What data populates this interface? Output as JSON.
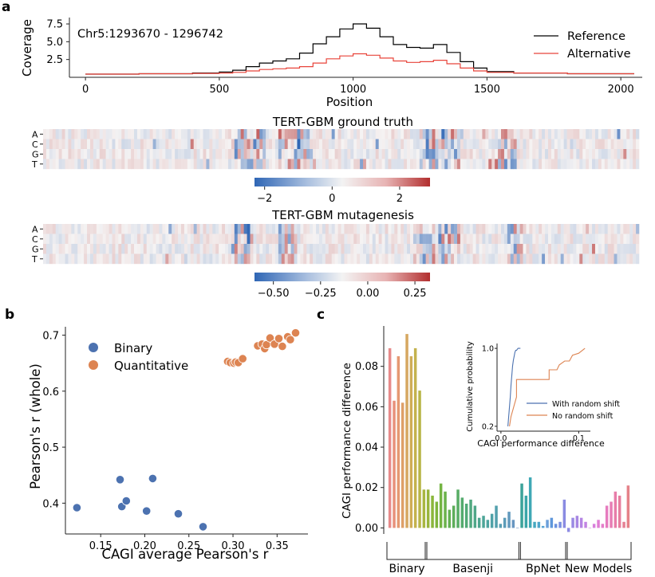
{
  "panel_letters": {
    "a": "a",
    "b": "b",
    "c": "c"
  },
  "chart_data": [
    {
      "id": "coverage",
      "type": "line",
      "annotation": "Chr5:1293670 - 1296742",
      "xlabel": "Position",
      "ylabel": "Coverage",
      "xlim": [
        -60,
        2080
      ],
      "ylim": [
        0,
        8.4
      ],
      "xticks": [
        0,
        500,
        1000,
        1500,
        2000
      ],
      "yticks": [
        2.5,
        5.0,
        7.5
      ],
      "ytick_labels": [
        "2.5",
        "5.0",
        "7.5"
      ],
      "legend_position": "top-right",
      "series": [
        {
          "name": "Reference",
          "color": "#000000",
          "x": [
            0,
            200,
            400,
            500,
            550,
            600,
            650,
            700,
            750,
            800,
            850,
            900,
            950,
            1000,
            1050,
            1100,
            1150,
            1200,
            1250,
            1300,
            1350,
            1400,
            1450,
            1500,
            1600,
            1800,
            2050
          ],
          "y": [
            0.45,
            0.5,
            0.6,
            0.75,
            1.0,
            1.5,
            2.0,
            2.3,
            2.6,
            3.4,
            4.7,
            5.7,
            6.8,
            7.5,
            6.9,
            5.7,
            4.6,
            4.2,
            4.1,
            4.6,
            3.5,
            2.2,
            1.3,
            0.8,
            0.6,
            0.5,
            0.5
          ]
        },
        {
          "name": "Alternative",
          "color": "#e8443a",
          "x": [
            0,
            200,
            400,
            500,
            550,
            600,
            650,
            700,
            750,
            800,
            850,
            900,
            950,
            1000,
            1050,
            1100,
            1150,
            1200,
            1250,
            1300,
            1350,
            1400,
            1450,
            1500,
            1600,
            1800,
            2050
          ],
          "y": [
            0.45,
            0.5,
            0.55,
            0.6,
            0.7,
            0.9,
            1.1,
            1.2,
            1.3,
            1.5,
            2.0,
            2.6,
            3.0,
            3.3,
            3.1,
            2.7,
            2.3,
            2.1,
            2.2,
            2.4,
            1.9,
            1.3,
            0.9,
            0.7,
            0.6,
            0.5,
            0.5
          ]
        }
      ]
    },
    {
      "id": "ground_truth",
      "type": "heatmap",
      "title": "TERT-GBM ground truth",
      "row_labels": [
        "A",
        "C",
        "G",
        "T"
      ],
      "colorbar_ticks": [
        "−2",
        "0",
        "2"
      ],
      "colorbar_range": [
        -2.3,
        2.9
      ]
    },
    {
      "id": "mutagenesis",
      "type": "heatmap",
      "title": "TERT-GBM mutagenesis",
      "row_labels": [
        "A",
        "C",
        "G",
        "T"
      ],
      "colorbar_ticks": [
        "−0.50",
        "−0.25",
        "0.00",
        "0.25"
      ],
      "colorbar_range": [
        -0.6,
        0.33
      ]
    },
    {
      "id": "scatter",
      "type": "scatter",
      "xlabel": "CAGI average Pearson's r",
      "ylabel": "Pearson's r (whole)",
      "xlim": [
        0.11,
        0.385
      ],
      "ylim": [
        0.345,
        0.715
      ],
      "xticks": [
        0.15,
        0.2,
        0.25,
        0.3,
        0.35
      ],
      "xtick_labels": [
        "0.15",
        "0.20",
        "0.25",
        "0.30",
        "0.35"
      ],
      "yticks": [
        0.4,
        0.5,
        0.6,
        0.7
      ],
      "ytick_labels": [
        "0.4",
        "0.5",
        "0.6",
        "0.7"
      ],
      "legend_position": "top-left",
      "series": [
        {
          "name": "Binary",
          "color": "#4c72b0",
          "x": [
            0.123,
            0.172,
            0.174,
            0.179,
            0.202,
            0.209,
            0.238,
            0.266
          ],
          "y": [
            0.392,
            0.442,
            0.394,
            0.404,
            0.386,
            0.444,
            0.381,
            0.358
          ]
        },
        {
          "name": "Quantitative",
          "color": "#dd8452",
          "x": [
            0.294,
            0.297,
            0.301,
            0.303,
            0.306,
            0.311,
            0.328,
            0.333,
            0.336,
            0.338,
            0.342,
            0.347,
            0.352,
            0.356,
            0.362,
            0.365,
            0.371
          ],
          "y": [
            0.653,
            0.651,
            0.65,
            0.652,
            0.651,
            0.658,
            0.681,
            0.684,
            0.676,
            0.683,
            0.695,
            0.684,
            0.694,
            0.68,
            0.697,
            0.692,
            0.704
          ]
        }
      ]
    },
    {
      "id": "bars",
      "type": "bar",
      "ylabel": "CAGI performance difference",
      "ylim": [
        -0.003,
        0.1
      ],
      "yticks": [
        0.0,
        0.02,
        0.04,
        0.06,
        0.08
      ],
      "ytick_labels": [
        "0.00",
        "0.02",
        "0.04",
        "0.06",
        "0.08"
      ],
      "groups": [
        {
          "name": "Binary",
          "start": 0,
          "end": 8
        },
        {
          "name": "Basenji",
          "start": 9,
          "end": 30
        },
        {
          "name": "BpNet",
          "start": 31,
          "end": 41
        },
        {
          "name": "New Models",
          "start": 42,
          "end": 56
        }
      ],
      "values": [
        0.089,
        0.063,
        0.085,
        0.062,
        0.096,
        0.085,
        0.089,
        0.068,
        0.019,
        0.019,
        0.016,
        0.013,
        0.022,
        0.018,
        0.009,
        0.011,
        0.019,
        0.015,
        0.012,
        0.014,
        0.011,
        0.005,
        0.006,
        0.004,
        0.007,
        0.011,
        0.002,
        0.005,
        0.008,
        0.004,
        0.0,
        0.022,
        0.016,
        0.025,
        0.003,
        0.003,
        0.001,
        0.004,
        0.005,
        0.002,
        0.003,
        0.014,
        -0.002,
        0.005,
        0.006,
        0.005,
        0.003,
        0.0,
        0.002,
        0.004,
        0.002,
        0.011,
        0.013,
        0.018,
        0.016,
        0.003,
        0.021
      ],
      "colors": [
        "#e78a8a",
        "#e8907a",
        "#e59872",
        "#dea068",
        "#d6a760",
        "#cfad57",
        "#c4b24e",
        "#b8b547",
        "#a8b640",
        "#98b53c",
        "#8ab63a",
        "#7eb53c",
        "#74b442",
        "#6bb24a",
        "#64b052",
        "#5eae5b",
        "#58ad65",
        "#54ab6e",
        "#52aa77",
        "#50a87f",
        "#4fa788",
        "#4ea690",
        "#4da598",
        "#4ea4a0",
        "#50a2a7",
        "#53a0ad",
        "#579eb3",
        "#5c9cb8",
        "#6299bd",
        "#6896c1",
        "#7093c4",
        "#3ba39a",
        "#3ba6a8",
        "#3fa8b5",
        "#46a8c0",
        "#4ea6cb",
        "#58a3d4",
        "#6b9fda",
        "#5f97db",
        "#6c93df",
        "#7a8fe1",
        "#8a8be2",
        "#8d8be4",
        "#9a89e3",
        "#a887e3",
        "#b585e3",
        "#c283e3",
        "#ce81e1",
        "#d87fdc",
        "#e07ed4",
        "#e47dca",
        "#e67cbf",
        "#e77cb4",
        "#e77da9",
        "#e67e9e",
        "#e58093",
        "#e58289"
      ]
    },
    {
      "id": "inset",
      "type": "line",
      "xlabel": "CAGI performance difference",
      "ylabel": "Cumulative probability",
      "xlim": [
        -0.005,
        0.115
      ],
      "ylim": [
        0.15,
        1.05
      ],
      "xticks": [
        0.0,
        0.1
      ],
      "xtick_labels": [
        "0.0",
        "0.1"
      ],
      "yticks": [
        0.2,
        1.0
      ],
      "ytick_labels": [
        "0.2",
        "1.0"
      ],
      "legend_position": "lower-right",
      "series": [
        {
          "name": "With random shift",
          "color": "#4c72b0",
          "x": [
            0.009,
            0.011,
            0.012,
            0.013,
            0.014,
            0.015,
            0.016,
            0.017,
            0.018,
            0.019,
            0.02,
            0.021,
            0.022,
            0.023,
            0.025
          ],
          "y": [
            0.2,
            0.4,
            0.5,
            0.62,
            0.72,
            0.82,
            0.88,
            0.92,
            0.96,
            0.98,
            0.98,
            0.99,
            1.0,
            1.0,
            1.0
          ]
        },
        {
          "name": "No random shift",
          "color": "#dd8452",
          "x": [
            0.011,
            0.013,
            0.02,
            0.02,
            0.035,
            0.048,
            0.062,
            0.062,
            0.065,
            0.072,
            0.075,
            0.082,
            0.088,
            0.092,
            0.1,
            0.108
          ],
          "y": [
            0.2,
            0.3,
            0.5,
            0.68,
            0.68,
            0.68,
            0.68,
            0.78,
            0.78,
            0.78,
            0.83,
            0.87,
            0.87,
            0.93,
            0.95,
            1.0
          ]
        }
      ]
    }
  ]
}
